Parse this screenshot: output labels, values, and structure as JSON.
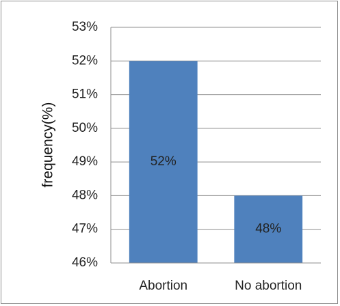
{
  "chart_data": {
    "type": "bar",
    "categories": [
      "Abortion",
      "No abortion"
    ],
    "values": [
      52,
      48
    ],
    "data_labels": [
      "52%",
      "48%"
    ],
    "title": "",
    "xlabel": "",
    "ylabel": "frequency(%)",
    "ylim": [
      46,
      53
    ],
    "yticks": [
      46,
      47,
      48,
      49,
      50,
      51,
      52,
      53
    ],
    "ytick_labels": [
      "46%",
      "47%",
      "48%",
      "49%",
      "50%",
      "51%",
      "52%",
      "53%"
    ],
    "grid": "horizontal",
    "legend": "none",
    "colors": {
      "bar": "#4f81bd",
      "grid": "#8c8c8c",
      "axis": "#8c8c8c",
      "border": "#8a8a8a"
    }
  }
}
